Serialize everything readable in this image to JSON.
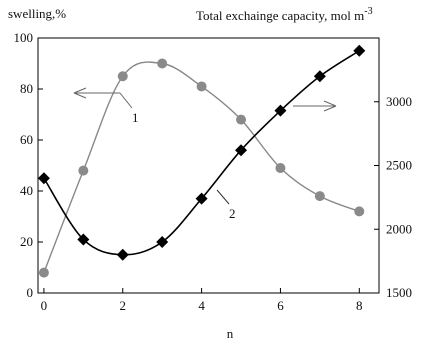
{
  "chart_data": {
    "type": "scatter",
    "title": "",
    "xlabel": "n",
    "ylabel_left": "swelling,%",
    "ylabel_right_text": "Total exchainge capacity, mol m",
    "ylabel_right_sup": "-3",
    "x_ticks": [
      0,
      2,
      4,
      6,
      8
    ],
    "y_left_ticks": [
      0,
      20,
      40,
      60,
      80,
      100
    ],
    "y_right_ticks": [
      1500,
      2000,
      2500,
      3000
    ],
    "xlim": [
      -0.15,
      8.5
    ],
    "ylim_left": [
      0,
      100
    ],
    "ylim_right": [
      1500,
      3500
    ],
    "grid": false,
    "series": [
      {
        "name": "1",
        "axis": "left",
        "marker": "circle",
        "color": "#8a8a8a",
        "x": [
          0,
          1,
          2,
          3,
          4,
          5,
          6,
          7,
          8
        ],
        "y": [
          8,
          48,
          85,
          90,
          81,
          68,
          49,
          38,
          32
        ]
      },
      {
        "name": "2",
        "axis": "right",
        "marker": "diamond",
        "color": "#000000",
        "x": [
          0,
          1,
          2,
          3,
          4,
          5,
          6,
          7,
          8
        ],
        "y": [
          2400,
          1920,
          1800,
          1900,
          2240,
          2620,
          2930,
          3200,
          3400
        ]
      }
    ],
    "annotations": [
      {
        "text": "1",
        "points_to": "left axis"
      },
      {
        "text": "2",
        "points_to": "right axis"
      }
    ]
  }
}
